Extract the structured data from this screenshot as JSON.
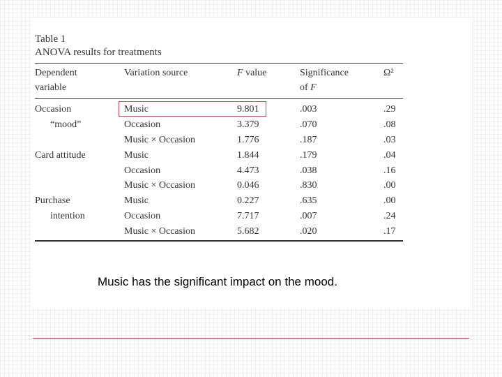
{
  "table": {
    "title": "Table 1",
    "subtitle": "ANOVA results for treatments",
    "headers": {
      "dependent_line1": "Dependent",
      "dependent_line2": "variable",
      "variation_source": "Variation source",
      "f_value": "F value",
      "significance_line1": "Significance",
      "significance_line2": "of F",
      "omega": "Ω²"
    },
    "rows": [
      {
        "dependent": "Occasion",
        "source": "Music",
        "f": "9.801",
        "sig": ".003",
        "omega": ".29"
      },
      {
        "dependent": "“mood”",
        "source": "Occasion",
        "f": "3.379",
        "sig": ".070",
        "omega": ".08"
      },
      {
        "dependent": "",
        "source": "Music × Occasion",
        "f": "1.776",
        "sig": ".187",
        "omega": ".03"
      },
      {
        "dependent": "Card attitude",
        "source": "Music",
        "f": "1.844",
        "sig": ".179",
        "omega": ".04"
      },
      {
        "dependent": "",
        "source": "Occasion",
        "f": "4.473",
        "sig": ".038",
        "omega": ".16"
      },
      {
        "dependent": "",
        "source": "Music × Occasion",
        "f": "0.046",
        "sig": ".830",
        "omega": ".00"
      },
      {
        "dependent": "Purchase",
        "source": "Music",
        "f": "0.227",
        "sig": ".635",
        "omega": ".00"
      },
      {
        "dependent": "intention",
        "source": "Occasion",
        "f": "7.717",
        "sig": ".007",
        "omega": ".24"
      },
      {
        "dependent": "",
        "source": "Music × Occasion",
        "f": "5.682",
        "sig": ".020",
        "omega": ".17"
      }
    ]
  },
  "note": "Music has the significant impact on the mood.",
  "colors": {
    "highlight_box": "#c0504d",
    "divider": "#c0504d",
    "table_text": "#333333"
  }
}
